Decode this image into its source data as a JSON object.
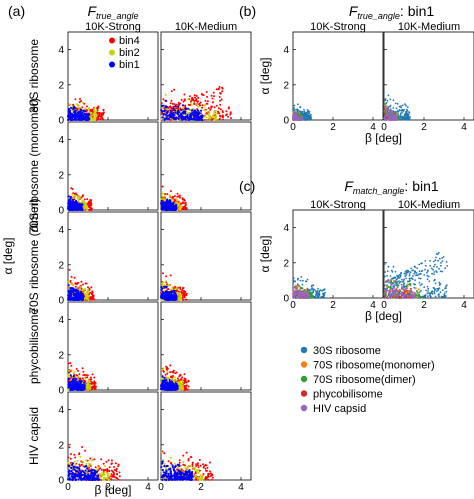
{
  "chart_data": {
    "type": "scatter",
    "panels": [
      {
        "label": "(a)",
        "title_main": "F",
        "title_sub": "true_angle",
        "title_suffix": "",
        "column_titles": [
          "10K-Strong",
          "10K-Medium"
        ],
        "row_labels": [
          "30S ribosome",
          "70S ribosome (monomer)",
          "70S ribosome (dimer)",
          "phycobilisome",
          "HIV capsid"
        ],
        "xlabel": "β [deg]",
        "ylabel": "α [deg]",
        "xlim": [
          0,
          4.5
        ],
        "ylim": [
          0,
          5
        ],
        "xticks": [
          0,
          2,
          4
        ],
        "yticks": [
          0,
          2,
          4
        ],
        "legend": [
          {
            "name": "bin4",
            "color": "#ff0000"
          },
          {
            "name": "bin2",
            "color": "#c8d400"
          },
          {
            "name": "bin1",
            "color": "#0000ff"
          }
        ],
        "regions": [
          [
            {
              "xmax": 1.8,
              "ymax": 1.9
            },
            {
              "xmax": 3.5,
              "ymax": 2.3
            }
          ],
          [
            {
              "xmax": 1.2,
              "ymax": 1.6
            },
            {
              "xmax": 1.3,
              "ymax": 1.6
            }
          ],
          [
            {
              "xmax": 1.3,
              "ymax": 1.8
            },
            {
              "xmax": 1.3,
              "ymax": 1.8
            }
          ],
          [
            {
              "xmax": 1.4,
              "ymax": 1.9
            },
            {
              "xmax": 1.4,
              "ymax": 1.9
            }
          ],
          [
            {
              "xmax": 2.6,
              "ymax": 2.4
            },
            {
              "xmax": 2.6,
              "ymax": 2.4
            }
          ]
        ]
      },
      {
        "label": "(b)",
        "title_main": "F",
        "title_sub": "true_angle",
        "title_suffix": ": bin1",
        "column_titles": [
          "10K-Strong",
          "10K-Medium"
        ],
        "xlabel": "β [deg]",
        "ylabel": "α [deg]",
        "xlim": [
          0,
          4.5
        ],
        "ylim": [
          0,
          5
        ],
        "xticks": [
          0,
          2,
          4
        ],
        "yticks": [
          0,
          2,
          4
        ],
        "regions": [
          {
            "xmax": 0.9,
            "ymax": 1.1
          },
          {
            "xmax": 1.3,
            "ymax": 1.8
          }
        ]
      },
      {
        "label": "(c)",
        "title_main": "F",
        "title_sub": "match_angle",
        "title_suffix": ": bin1",
        "column_titles": [
          "10K-Strong",
          "10K-Medium"
        ],
        "xlabel": "β [deg]",
        "ylabel": "α [deg]",
        "xlim": [
          0,
          4.5
        ],
        "ylim": [
          0,
          5
        ],
        "xticks": [
          0,
          2,
          4
        ],
        "yticks": [
          0,
          2,
          4
        ],
        "regions": [
          {
            "xmax": 1.6,
            "ymax": 1.6
          },
          {
            "xmax": 3.2,
            "ymax": 2.6
          }
        ]
      }
    ],
    "legend_bc": [
      {
        "name": "30S ribosome",
        "color": "#1f77b4"
      },
      {
        "name": "70S ribosome(monomer)",
        "color": "#ff7f0e"
      },
      {
        "name": "70S ribosome(dimer)",
        "color": "#2ca02c"
      },
      {
        "name": "phycobilisome",
        "color": "#d62728"
      },
      {
        "name": "HIV capsid",
        "color": "#9467bd"
      }
    ],
    "grid": false
  }
}
